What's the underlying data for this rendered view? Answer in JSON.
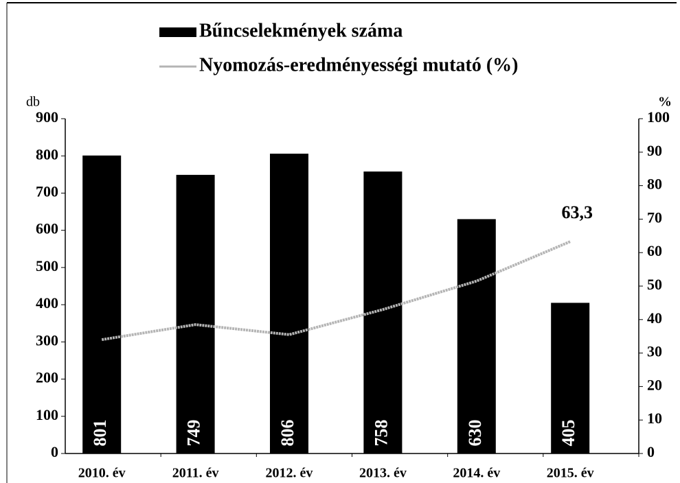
{
  "chart_data": {
    "type": "bar",
    "categories": [
      "2010. év",
      "2011. év",
      "2012. év",
      "2013. év",
      "2014. év",
      "2015. év"
    ],
    "series": [
      {
        "name": "Bűncselekmények száma",
        "color": "#000000",
        "type": "bar",
        "values": [
          801,
          749,
          806,
          758,
          630,
          405
        ]
      },
      {
        "name": "Nyomozás-eredményességi mutató (%)",
        "color": "#b4b4b4",
        "type": "line",
        "axis": "y2",
        "values": [
          34,
          38.5,
          35.5,
          43,
          51.5,
          63.3
        ],
        "value_labels": [
          null,
          null,
          null,
          null,
          null,
          "63,3"
        ]
      }
    ],
    "ylabel": "db",
    "y2label": "%",
    "ylim": [
      0,
      900
    ],
    "yticks": [
      0,
      100,
      200,
      300,
      400,
      500,
      600,
      700,
      800,
      900
    ],
    "y2lim": [
      0,
      100
    ],
    "y2ticks": [
      0,
      10,
      20,
      30,
      40,
      50,
      60,
      70,
      80,
      90,
      100
    ],
    "legend": "top"
  }
}
